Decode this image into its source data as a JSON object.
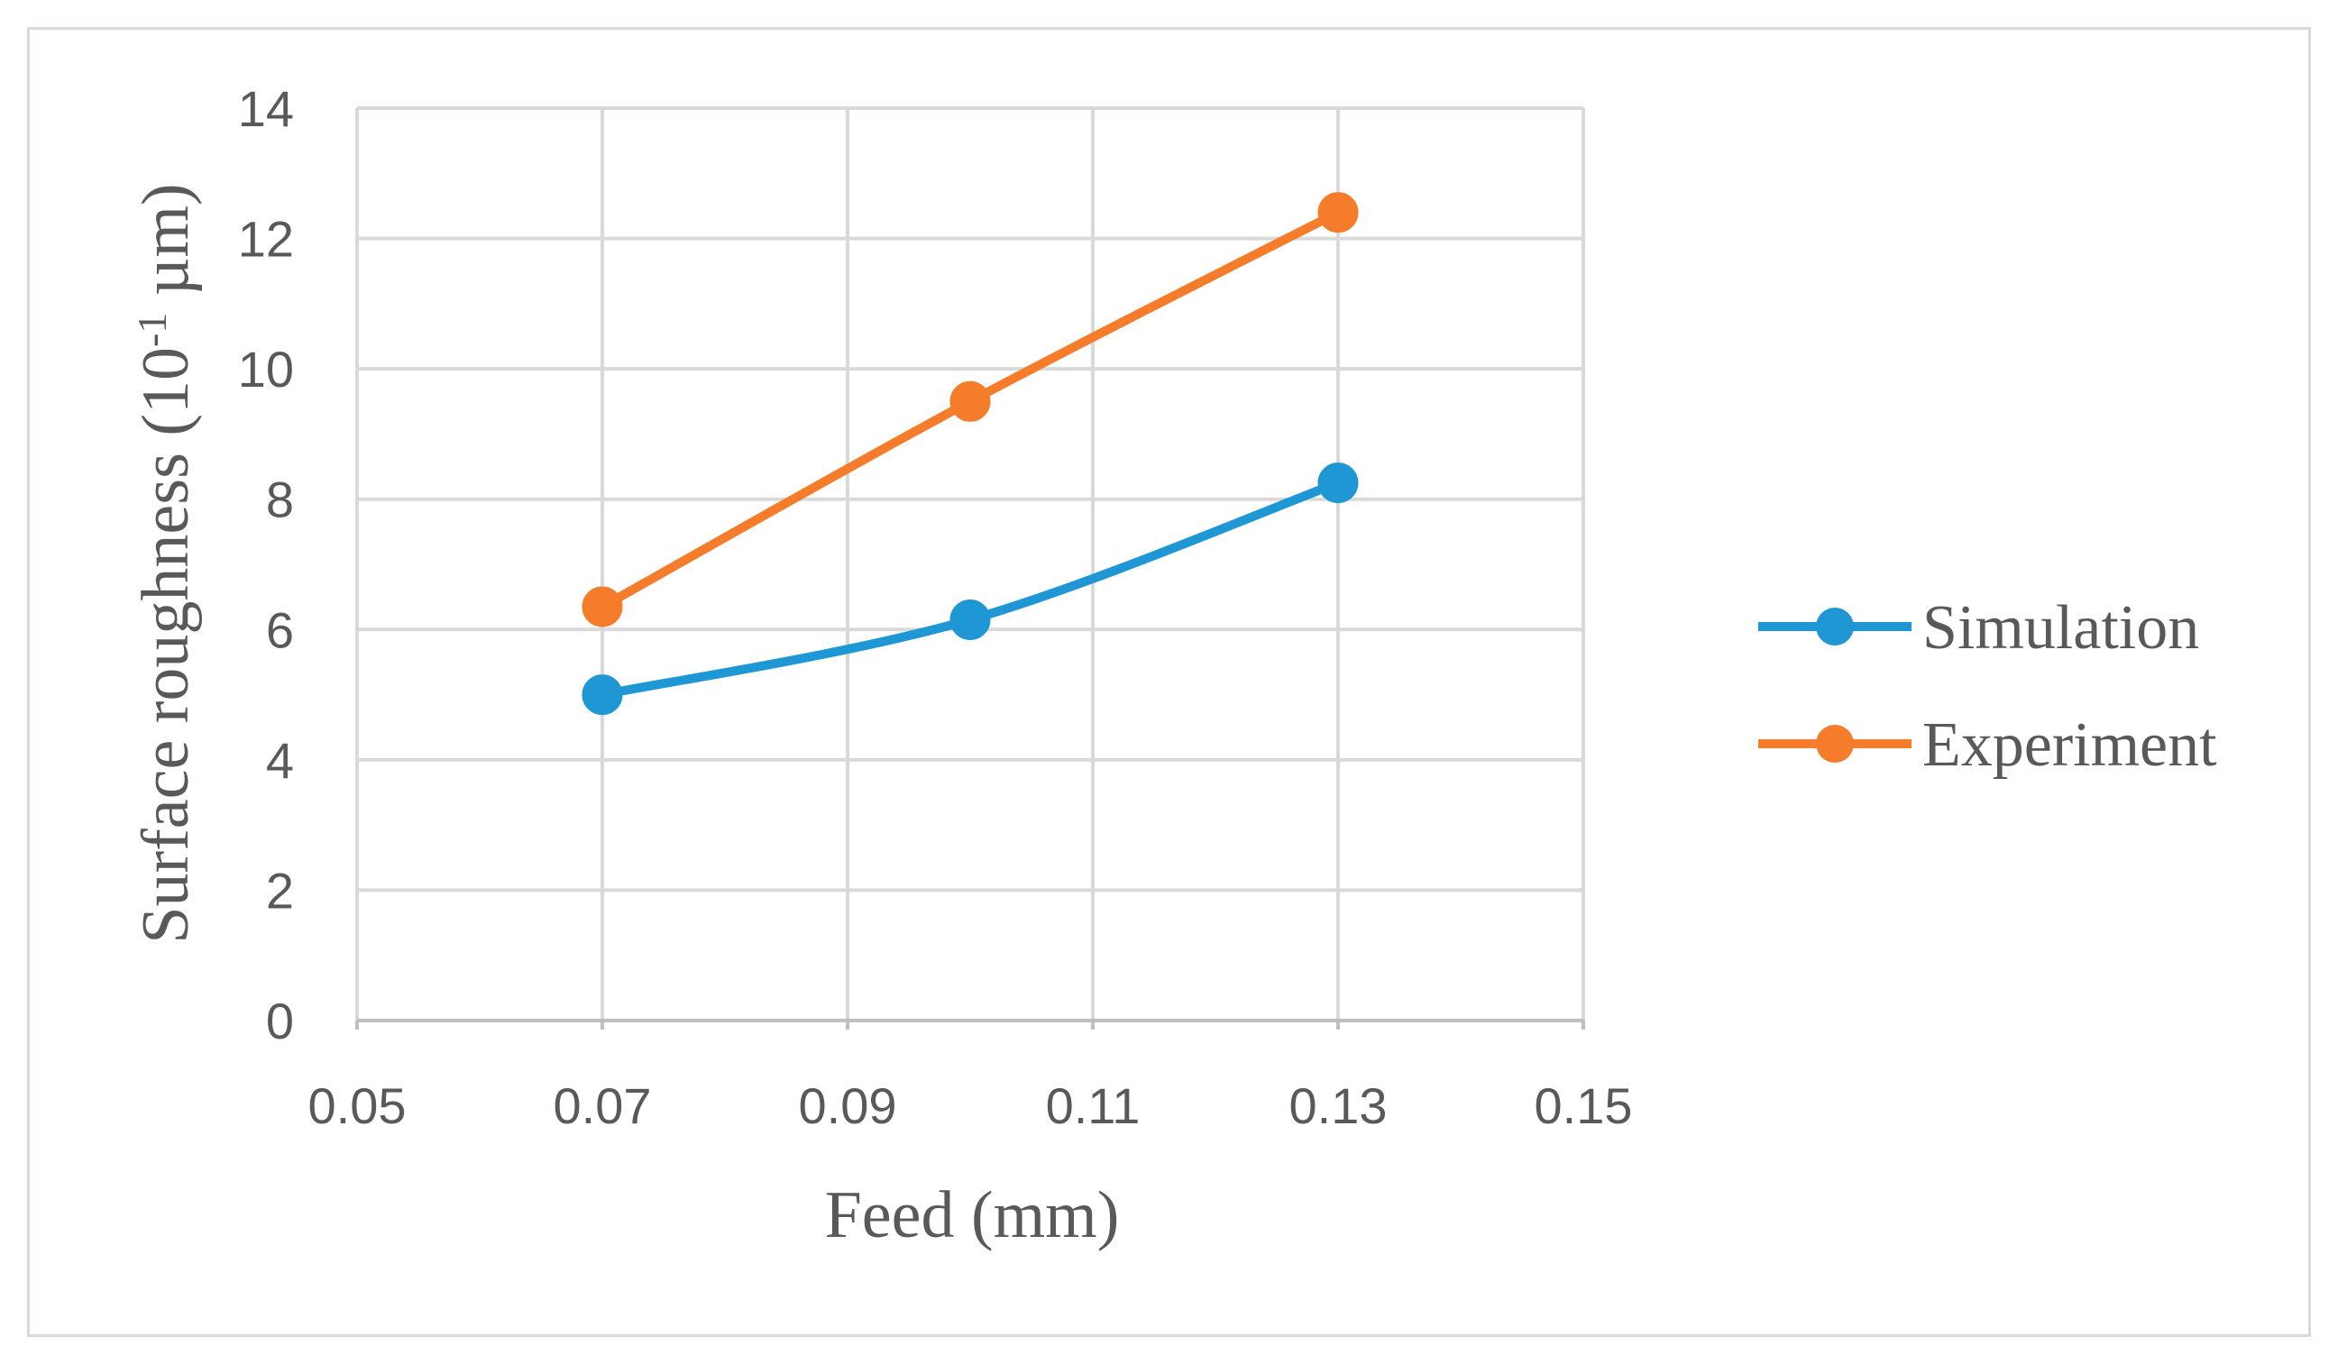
{
  "chart_data": {
    "type": "line",
    "title": "",
    "xlabel": "Feed (mm)",
    "ylabel_main": "Surface roughness (10",
    "ylabel_sup": "-1",
    "ylabel_tail": " µm)",
    "xlim": [
      0.05,
      0.15
    ],
    "ylim": [
      0,
      14
    ],
    "x_ticks": [
      0.05,
      0.07,
      0.09,
      0.11,
      0.13,
      0.15
    ],
    "x_tick_labels": [
      "0.05",
      "0.07",
      "0.09",
      "0.11",
      "0.13",
      "0.15"
    ],
    "y_ticks": [
      0,
      2,
      4,
      6,
      8,
      10,
      12,
      14
    ],
    "y_tick_labels": [
      "0",
      "2",
      "4",
      "6",
      "8",
      "10",
      "12",
      "14"
    ],
    "grid": true,
    "legend_position": "right",
    "series": [
      {
        "name": "Simulation",
        "color": "#1f97d4",
        "x": [
          0.07,
          0.1,
          0.13
        ],
        "y": [
          5.0,
          6.15,
          8.25
        ]
      },
      {
        "name": "Experiment",
        "color": "#f47c2b",
        "x": [
          0.07,
          0.1,
          0.13
        ],
        "y": [
          6.35,
          9.5,
          12.4
        ]
      }
    ]
  }
}
